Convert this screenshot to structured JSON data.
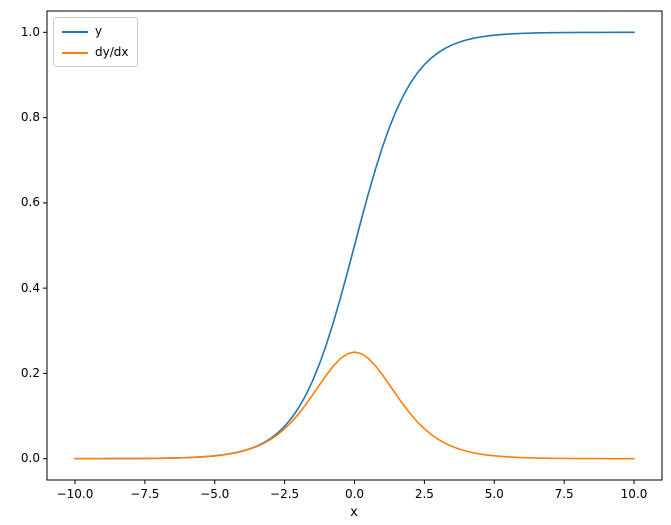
{
  "colors": {
    "figure_background": "#ffffff",
    "spine": "#000000",
    "text": "#000000",
    "legend_border": "#cccccc"
  },
  "chart_data": {
    "type": "line",
    "title": "",
    "xlabel": "x",
    "ylabel": "",
    "grid": false,
    "legend_position": "upper left",
    "xlim": [
      -11,
      11
    ],
    "ylim": [
      -0.05,
      1.05
    ],
    "x_ticks": [
      -10.0,
      -7.5,
      -5.0,
      -2.5,
      0.0,
      2.5,
      5.0,
      7.5,
      10.0
    ],
    "x_tick_labels": [
      "−10.0",
      "−7.5",
      "−5.0",
      "−2.5",
      "0.0",
      "2.5",
      "5.0",
      "7.5",
      "10.0"
    ],
    "y_ticks": [
      0.0,
      0.2,
      0.4,
      0.6,
      0.8,
      1.0
    ],
    "y_tick_labels": [
      "0.0",
      "0.2",
      "0.4",
      "0.6",
      "0.8",
      "1.0"
    ],
    "x": [
      -10,
      -9.75,
      -9.5,
      -9.25,
      -9,
      -8.75,
      -8.5,
      -8.25,
      -8,
      -7.75,
      -7.5,
      -7.25,
      -7,
      -6.75,
      -6.5,
      -6.25,
      -6,
      -5.75,
      -5.5,
      -5.25,
      -5,
      -4.75,
      -4.5,
      -4.25,
      -4,
      -3.75,
      -3.5,
      -3.25,
      -3,
      -2.75,
      -2.5,
      -2.25,
      -2,
      -1.75,
      -1.5,
      -1.25,
      -1,
      -0.75,
      -0.5,
      -0.25,
      0,
      0.25,
      0.5,
      0.75,
      1,
      1.25,
      1.5,
      1.75,
      2,
      2.25,
      2.5,
      2.75,
      3,
      3.25,
      3.5,
      3.75,
      4,
      4.25,
      4.5,
      4.75,
      5,
      5.25,
      5.5,
      5.75,
      6,
      6.25,
      6.5,
      6.75,
      7,
      7.25,
      7.5,
      7.75,
      8,
      8.25,
      8.5,
      8.75,
      9,
      9.25,
      9.5,
      9.75,
      10
    ],
    "series": [
      {
        "name": "y",
        "color": "#1f77b4",
        "values": [
          5e-05,
          6e-05,
          7e-05,
          0.0001,
          0.00012,
          0.00016,
          0.0002,
          0.00026,
          0.00034,
          0.00043,
          0.00055,
          0.00071,
          0.00091,
          0.00117,
          0.0015,
          0.00193,
          0.00247,
          0.00317,
          0.00407,
          0.00522,
          0.00669,
          0.00858,
          0.01099,
          0.01406,
          0.01799,
          0.02298,
          0.02931,
          0.03733,
          0.04743,
          0.06009,
          0.07586,
          0.09535,
          0.1192,
          0.14805,
          0.18243,
          0.2227,
          0.26894,
          0.32082,
          0.37754,
          0.43782,
          0.5,
          0.56218,
          0.62246,
          0.67918,
          0.73106,
          0.7773,
          0.81757,
          0.85195,
          0.8808,
          0.90465,
          0.92414,
          0.93991,
          0.95257,
          0.96267,
          0.97069,
          0.97702,
          0.98201,
          0.98594,
          0.98901,
          0.99142,
          0.99331,
          0.99478,
          0.99593,
          0.99683,
          0.99753,
          0.99807,
          0.9985,
          0.99883,
          0.99909,
          0.99929,
          0.99945,
          0.99957,
          0.99966,
          0.99974,
          0.9998,
          0.99984,
          0.99988,
          0.9999,
          0.99993,
          0.99994,
          0.99995
        ]
      },
      {
        "name": "dy/dx",
        "color": "#ff7f0e",
        "values": [
          5e-05,
          6e-05,
          7e-05,
          0.0001,
          0.00012,
          0.00016,
          0.0002,
          0.00026,
          0.00034,
          0.00043,
          0.00055,
          0.00071,
          0.00091,
          0.00117,
          0.0015,
          0.00192,
          0.00246,
          0.00316,
          0.00405,
          0.00519,
          0.00665,
          0.00851,
          0.01087,
          0.01386,
          0.01767,
          0.02245,
          0.02845,
          0.03594,
          0.04518,
          0.05648,
          0.0701,
          0.08626,
          0.10499,
          0.12613,
          0.14915,
          0.1731,
          0.19661,
          0.2179,
          0.235,
          0.24613,
          0.25,
          0.24613,
          0.235,
          0.2179,
          0.19661,
          0.1731,
          0.14915,
          0.12613,
          0.10499,
          0.08626,
          0.0701,
          0.05648,
          0.04518,
          0.03594,
          0.02845,
          0.02245,
          0.01767,
          0.01386,
          0.01087,
          0.00851,
          0.00665,
          0.00519,
          0.00405,
          0.00316,
          0.00246,
          0.00192,
          0.0015,
          0.00117,
          0.00091,
          0.00071,
          0.00055,
          0.00043,
          0.00034,
          0.00026,
          0.0002,
          0.00016,
          0.00012,
          0.0001,
          7e-05,
          6e-05,
          5e-05
        ]
      }
    ]
  }
}
